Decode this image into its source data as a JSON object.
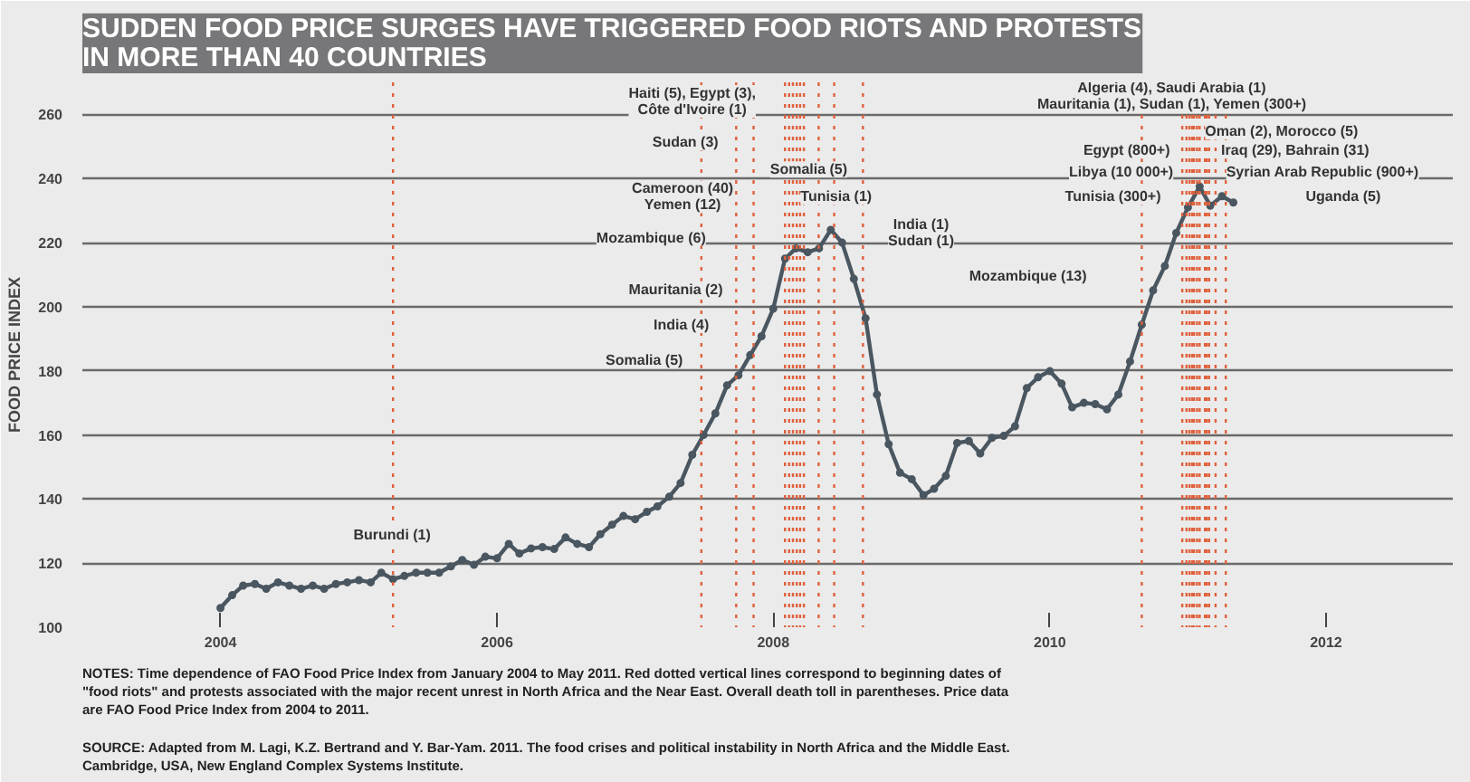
{
  "chart_data": {
    "type": "line",
    "title": "SUDDEN FOOD PRICE SURGES HAVE TRIGGERED FOOD RIOTS AND PROTESTS\nIN MORE THAN 40 COUNTRIES",
    "ylabel": "FOOD PRICE INDEX",
    "x": [
      "2004-01",
      "2004-02",
      "2004-03",
      "2004-04",
      "2004-05",
      "2004-06",
      "2004-07",
      "2004-08",
      "2004-09",
      "2004-10",
      "2004-11",
      "2004-12",
      "2005-01",
      "2005-02",
      "2005-03",
      "2005-04",
      "2005-05",
      "2005-06",
      "2005-07",
      "2005-08",
      "2005-09",
      "2005-10",
      "2005-11",
      "2005-12",
      "2006-01",
      "2006-02",
      "2006-03",
      "2006-04",
      "2006-05",
      "2006-06",
      "2006-07",
      "2006-08",
      "2006-09",
      "2006-10",
      "2006-11",
      "2006-12",
      "2007-01",
      "2007-02",
      "2007-03",
      "2007-04",
      "2007-05",
      "2007-06",
      "2007-07",
      "2007-08",
      "2007-09",
      "2007-10",
      "2007-11",
      "2007-12",
      "2008-01",
      "2008-02",
      "2008-03",
      "2008-04",
      "2008-05",
      "2008-06",
      "2008-07",
      "2008-08",
      "2008-09",
      "2008-10",
      "2008-11",
      "2008-12",
      "2009-01",
      "2009-02",
      "2009-03",
      "2009-04",
      "2009-05",
      "2009-06",
      "2009-07",
      "2009-08",
      "2009-09",
      "2009-10",
      "2009-11",
      "2009-12",
      "2010-01",
      "2010-02",
      "2010-03",
      "2010-04",
      "2010-05",
      "2010-06",
      "2010-07",
      "2010-08",
      "2010-09",
      "2010-10",
      "2010-11",
      "2010-12",
      "2011-01",
      "2011-02",
      "2011-03",
      "2011-04",
      "2011-05"
    ],
    "series": [
      {
        "color": "#4a5660",
        "values": [
          106,
          110,
          113,
          113.5,
          112,
          114,
          113,
          112,
          113,
          112,
          113.5,
          114,
          114.7,
          114,
          117,
          115,
          116,
          117,
          117,
          117,
          119,
          121,
          119.5,
          122,
          121.5,
          126,
          123,
          124.6,
          125,
          124.4,
          128,
          126,
          125,
          129,
          132,
          134.7,
          133.7,
          136,
          137.7,
          140.7,
          145,
          153.8,
          160,
          166.7,
          175.5,
          178.6,
          184.9,
          190.8,
          199.4,
          215,
          218.2,
          217,
          218.2,
          224,
          220,
          208.7,
          196.4,
          172.6,
          157.1,
          148.2,
          146.2,
          141.2,
          143.2,
          147.2,
          157.5,
          158.1,
          154.2,
          159.1,
          159.7,
          162.7,
          174.6,
          178,
          179.9,
          176,
          168.6,
          170,
          169.6,
          168,
          172.6,
          182.9,
          194.4,
          205.1,
          212.7,
          223,
          231,
          237.5,
          231.5,
          234.5,
          232.5
        ]
      }
    ],
    "marker": "circle",
    "line_style": "solid",
    "grid": "y",
    "xlim": [
      "2003-01-01",
      "2012-12-01"
    ],
    "xticks": [
      {
        "value": "2004-01-01",
        "label": "2004"
      },
      {
        "value": "2006-01-01",
        "label": "2006"
      },
      {
        "value": "2008-01-01",
        "label": "2008"
      },
      {
        "value": "2010-01-01",
        "label": "2010"
      },
      {
        "value": "2012-01-01",
        "label": "2012"
      }
    ],
    "ylim": [
      100,
      270
    ],
    "yticks": [
      100,
      120,
      140,
      160,
      180,
      200,
      220,
      240,
      260
    ],
    "ref_lines": [
      {
        "axis": "x",
        "value": "2005-04-01",
        "color": "#e0603c",
        "line_style": "dotted"
      },
      {
        "axis": "x",
        "value": "2007-06-25",
        "color": "#e0603c",
        "line_style": "dotted"
      },
      {
        "axis": "x",
        "value": "2007-09-25",
        "color": "#e0603c",
        "line_style": "dotted"
      },
      {
        "axis": "x",
        "value": "2007-11-10",
        "color": "#e0603c",
        "line_style": "dotted"
      },
      {
        "axis": "x",
        "value": "2008-02-01",
        "color": "#e0603c",
        "line_style": "dotted"
      },
      {
        "axis": "x",
        "value": "2008-02-12",
        "color": "#e0603c",
        "line_style": "dotted"
      },
      {
        "axis": "x",
        "value": "2008-02-22",
        "color": "#e0603c",
        "line_style": "dotted"
      },
      {
        "axis": "x",
        "value": "2008-03-03",
        "color": "#e0603c",
        "line_style": "dotted"
      },
      {
        "axis": "x",
        "value": "2008-03-12",
        "color": "#e0603c",
        "line_style": "dotted"
      },
      {
        "axis": "x",
        "value": "2008-03-22",
        "color": "#e0603c",
        "line_style": "dotted"
      },
      {
        "axis": "x",
        "value": "2008-04-30",
        "color": "#e0603c",
        "line_style": "dotted"
      },
      {
        "axis": "x",
        "value": "2008-06-10",
        "color": "#e0603c",
        "line_style": "dotted"
      },
      {
        "axis": "x",
        "value": "2008-08-25",
        "color": "#e0603c",
        "line_style": "dotted"
      },
      {
        "axis": "x",
        "value": "2010-09-01",
        "color": "#e0603c",
        "line_style": "dotted"
      },
      {
        "axis": "x",
        "value": "2010-12-17",
        "color": "#e0603c",
        "line_style": "dotted"
      },
      {
        "axis": "x",
        "value": "2010-12-28",
        "color": "#e0603c",
        "line_style": "dotted"
      },
      {
        "axis": "x",
        "value": "2011-01-05",
        "color": "#e0603c",
        "line_style": "dotted"
      },
      {
        "axis": "x",
        "value": "2011-01-12",
        "color": "#e0603c",
        "line_style": "dotted"
      },
      {
        "axis": "x",
        "value": "2011-01-17",
        "color": "#e0603c",
        "line_style": "dotted"
      },
      {
        "axis": "x",
        "value": "2011-01-25",
        "color": "#e0603c",
        "line_style": "dotted"
      },
      {
        "axis": "x",
        "value": "2011-02-01",
        "color": "#e0603c",
        "line_style": "dotted"
      },
      {
        "axis": "x",
        "value": "2011-02-15",
        "color": "#e0603c",
        "line_style": "dotted"
      },
      {
        "axis": "x",
        "value": "2011-02-20",
        "color": "#e0603c",
        "line_style": "dotted"
      },
      {
        "axis": "x",
        "value": "2011-02-26",
        "color": "#e0603c",
        "line_style": "dotted"
      },
      {
        "axis": "x",
        "value": "2011-03-15",
        "color": "#e0603c",
        "line_style": "dotted"
      },
      {
        "axis": "x",
        "value": "2011-04-11",
        "color": "#e0603c",
        "line_style": "dotted"
      }
    ],
    "annotations": [
      "Burundi (1)",
      "Somalia (5)",
      "India (4)",
      "Mauritania (2)",
      "Mozambique (6)",
      "Cameroon (40)\nYemen (12)",
      "Sudan (3)",
      "Haiti (5), Egypt (3),\nCôte d'Ivoire (1)",
      "Somalia (5)",
      "Tunisia (1)",
      "India (1)\nSudan (1)",
      "Mozambique (13)",
      "Algeria (4), Saudi Arabia (1)\nMauritania (1), Sudan (1), Yemen (300+)",
      "Oman (2), Morocco (5)",
      "Iraq (29), Bahrain (31)",
      "Egypt (800+)",
      "Libya (10 000+)",
      "Syrian Arab Republic (900+)",
      "Tunisia (300+)",
      "Uganda (5)",
      "NOTES: Time dependence of FAO Food Price Index from January 2004 to May 2011. Red dotted vertical lines correspond to beginning dates of\n\"food riots\" and protests associated with the major recent unrest in North Africa and the Near East. Overall death toll in parentheses. Price data\nare FAO Food Price Index from 2004 to 2011.",
      "SOURCE: Adapted from M. Lagi, K.Z. Bertrand and Y. Bar-Yam. 2011. The food crises and political instability in North Africa and the Middle East.\nCambridge, USA, New England Complex Systems Institute."
    ]
  }
}
